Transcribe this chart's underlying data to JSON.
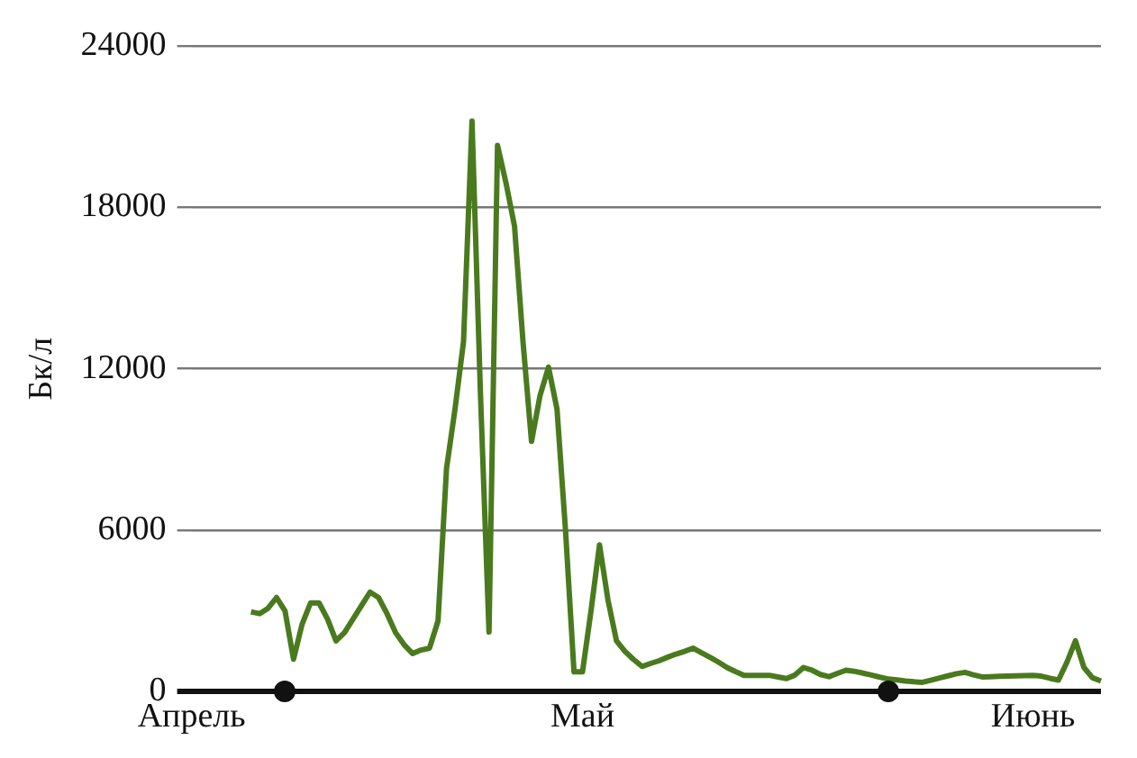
{
  "chart_data": {
    "type": "line",
    "ylabel": "Бк/л",
    "ylim": [
      0,
      24000
    ],
    "yticks": [
      0,
      6000,
      12000,
      18000,
      24000
    ],
    "categories": [
      "Апрель",
      null,
      null,
      null,
      null,
      null,
      null,
      null,
      null,
      null,
      null,
      null,
      null,
      null,
      null,
      null,
      null,
      null,
      null,
      null,
      null,
      null,
      null,
      null,
      null,
      null,
      null,
      null,
      null,
      null,
      null,
      null,
      null,
      null,
      null,
      null,
      null,
      null,
      null,
      null,
      null,
      null,
      null,
      null,
      null,
      null,
      "Май",
      null,
      null,
      null,
      null,
      null,
      null,
      null,
      null,
      null,
      null,
      null,
      null,
      null,
      null,
      null,
      null,
      null,
      null,
      null,
      null,
      null,
      null,
      null,
      null,
      null,
      null,
      null,
      null,
      null,
      null,
      null,
      null,
      null,
      null,
      null,
      null,
      null,
      null,
      null,
      null,
      null,
      null,
      null,
      null,
      null,
      null,
      null,
      null,
      null,
      null,
      null,
      null,
      "Июнь",
      null,
      null,
      null,
      null,
      null,
      null,
      null,
      null
    ],
    "grid": "y",
    "legend": false,
    "marker": "none",
    "line_style": "solid",
    "series": [
      {
        "color": "#4a7a1e",
        "values": [
          null,
          null,
          null,
          null,
          null,
          null,
          null,
          2970,
          2900,
          3100,
          3500,
          3000,
          1210,
          2500,
          3300,
          3300,
          2700,
          1890,
          2200,
          2700,
          3200,
          3700,
          3500,
          2900,
          2200,
          1750,
          1420,
          1550,
          1620,
          2630,
          8290,
          10500,
          13000,
          21200,
          11000,
          2220,
          20300,
          18900,
          17300,
          13000,
          9300,
          11000,
          12060,
          10500,
          6000,
          740,
          740,
          3000,
          5460,
          3400,
          1890,
          1500,
          1200,
          940,
          1050,
          1150,
          1280,
          1400,
          1500,
          1620,
          1450,
          1280,
          1100,
          900,
          750,
          610,
          610,
          610,
          610,
          550,
          490,
          620,
          900,
          800,
          640,
          560,
          680,
          800,
          760,
          690,
          620,
          540,
          470,
          440,
          400,
          370,
          350,
          430,
          510,
          590,
          670,
          720,
          630,
          550,
          560,
          570,
          580,
          590,
          600,
          610,
          580,
          500,
          430,
          1100,
          1890,
          900,
          520,
          400
        ]
      }
    ]
  }
}
